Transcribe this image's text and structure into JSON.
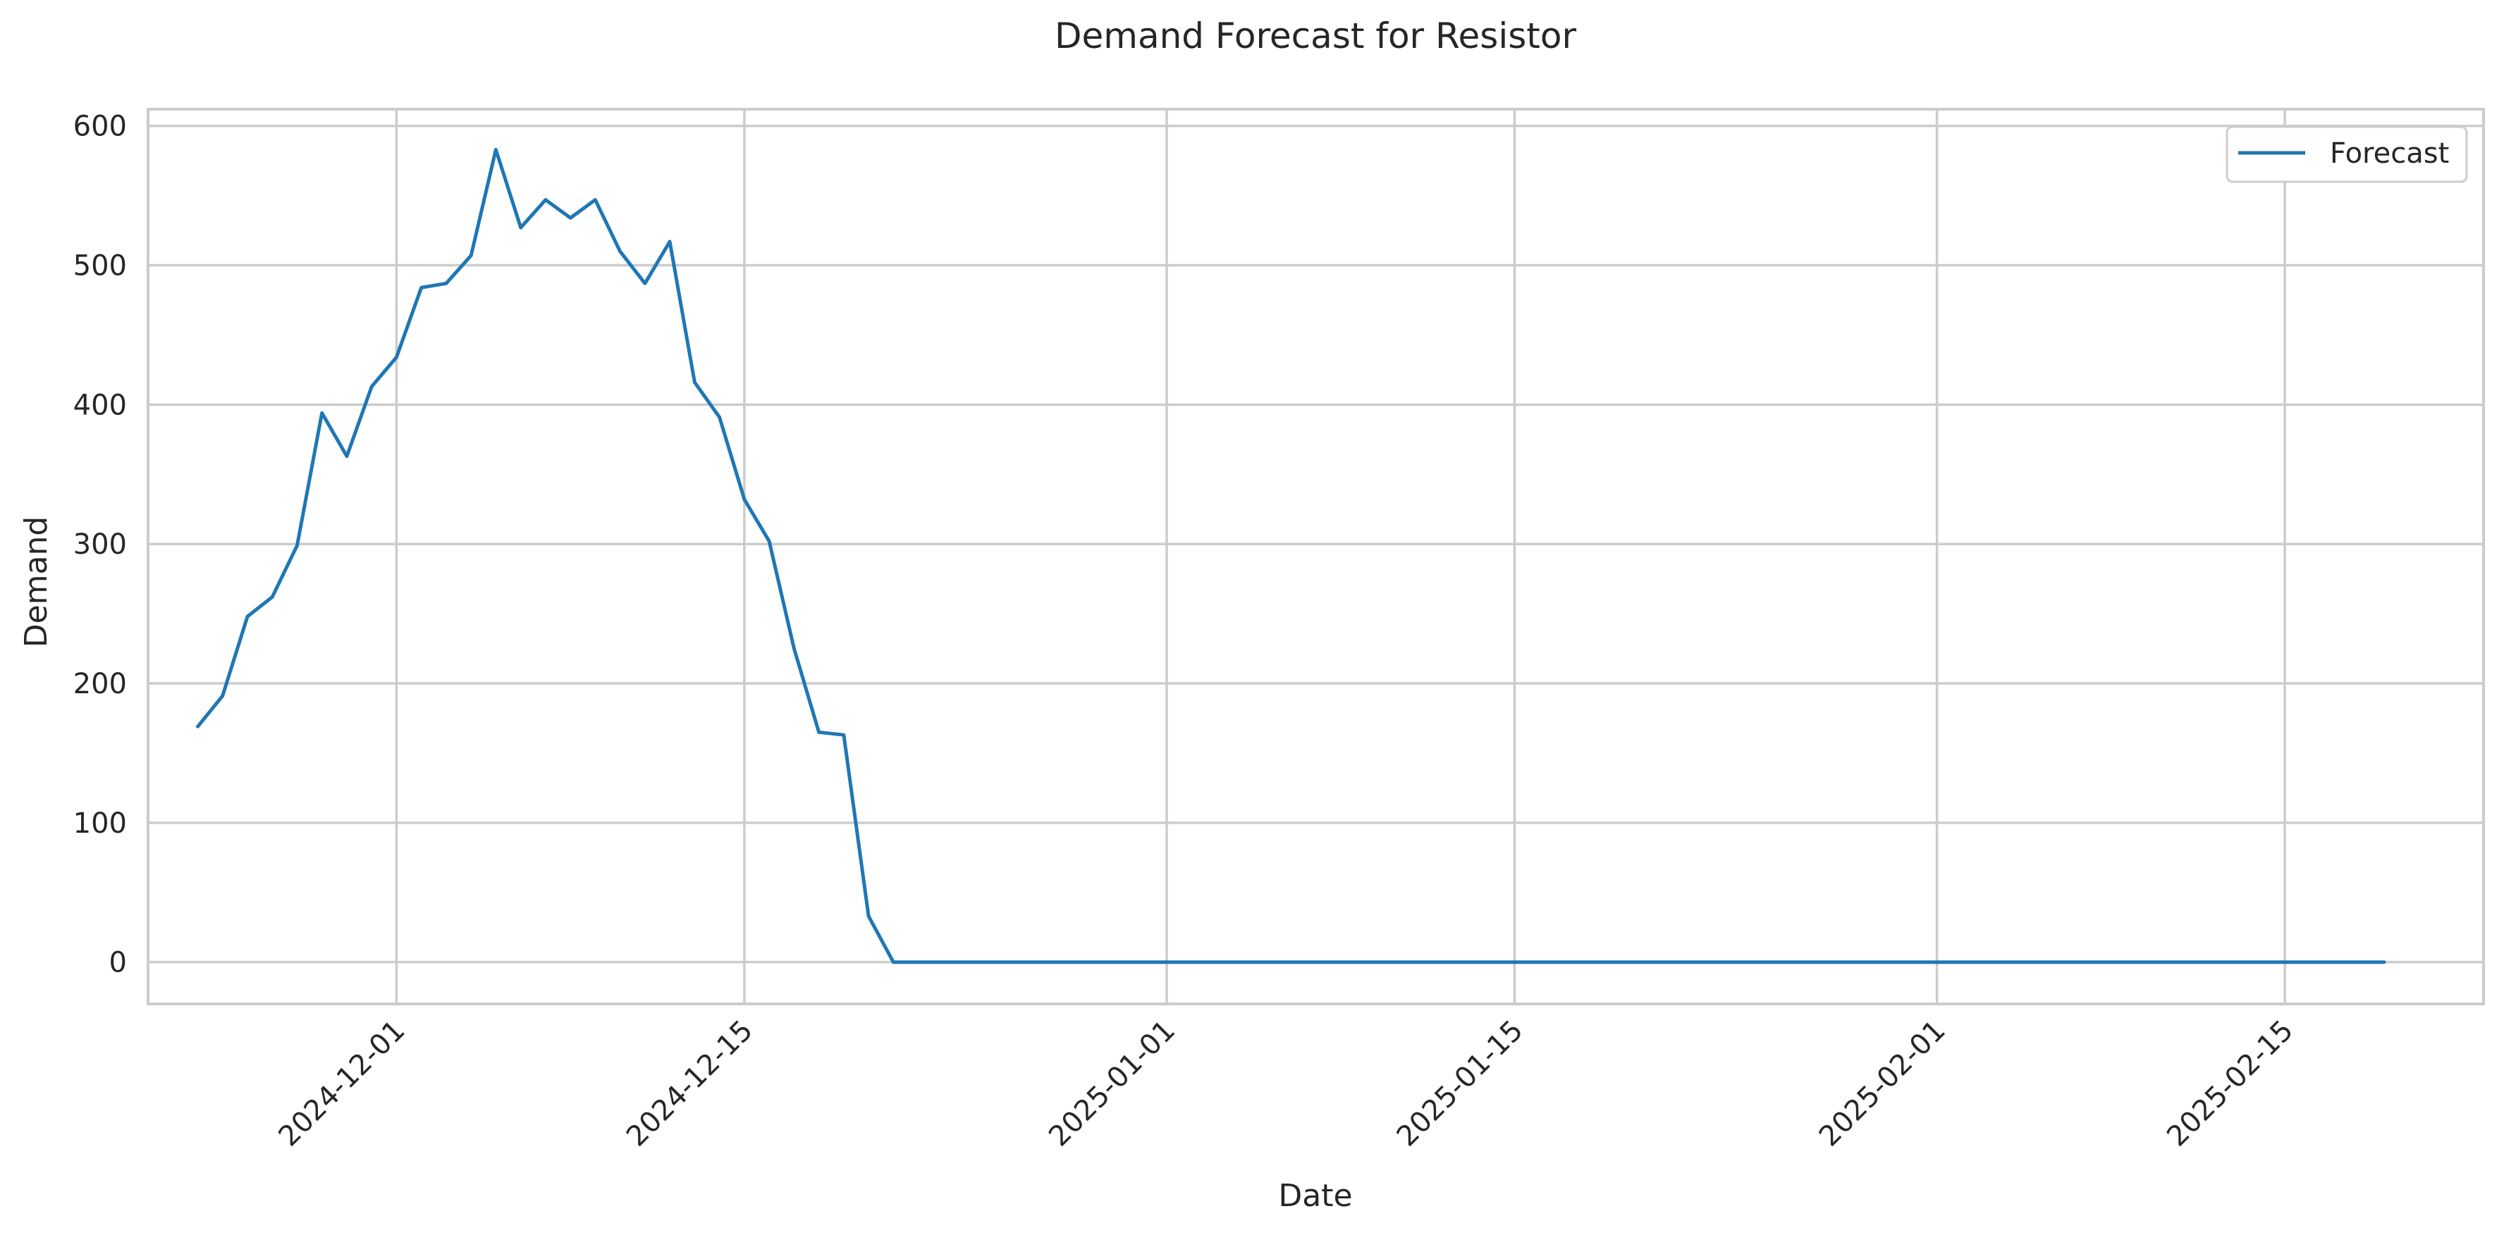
{
  "chart_data": {
    "type": "line",
    "title": "Demand Forecast for Resistor",
    "xlabel": "Date",
    "ylabel": "Demand",
    "x_axis_type": "date",
    "xlim": [
      "2024-11-21",
      "2025-02-23"
    ],
    "ylim": [
      -30,
      612
    ],
    "grid": true,
    "legend_position": "top-right",
    "colors": {
      "series": "#1f77b4",
      "grid": "#cccccc",
      "frame": "#cccccc",
      "text": "#262626",
      "background": "#ffffff"
    },
    "x_ticks": [
      "2024-12-01",
      "2024-12-15",
      "2025-01-01",
      "2025-01-15",
      "2025-02-01",
      "2025-02-15"
    ],
    "y_ticks": [
      0,
      100,
      200,
      300,
      400,
      500,
      600
    ],
    "series": [
      {
        "name": "Forecast",
        "color": "#1f77b4",
        "x": [
          "2024-11-23",
          "2024-11-24",
          "2024-11-25",
          "2024-11-26",
          "2024-11-27",
          "2024-11-28",
          "2024-11-29",
          "2024-11-30",
          "2024-12-01",
          "2024-12-02",
          "2024-12-03",
          "2024-12-04",
          "2024-12-05",
          "2024-12-06",
          "2024-12-07",
          "2024-12-08",
          "2024-12-09",
          "2024-12-10",
          "2024-12-11",
          "2024-12-12",
          "2024-12-13",
          "2024-12-14",
          "2024-12-15",
          "2024-12-16",
          "2024-12-17",
          "2024-12-18",
          "2024-12-19",
          "2024-12-20",
          "2024-12-21",
          "2024-12-22",
          "2024-12-23",
          "2024-12-24",
          "2024-12-25",
          "2024-12-26",
          "2024-12-27",
          "2024-12-28",
          "2024-12-29",
          "2024-12-30",
          "2024-12-31",
          "2025-01-01",
          "2025-01-02",
          "2025-01-03",
          "2025-01-04",
          "2025-01-05",
          "2025-01-06",
          "2025-01-07",
          "2025-01-08",
          "2025-01-09",
          "2025-01-10",
          "2025-01-11",
          "2025-01-12",
          "2025-01-13",
          "2025-01-14",
          "2025-01-15",
          "2025-01-16",
          "2025-01-17",
          "2025-01-18",
          "2025-01-19",
          "2025-01-20",
          "2025-01-21",
          "2025-01-22",
          "2025-01-23",
          "2025-01-24",
          "2025-01-25",
          "2025-01-26",
          "2025-01-27",
          "2025-01-28",
          "2025-01-29",
          "2025-01-30",
          "2025-01-31",
          "2025-02-01",
          "2025-02-02",
          "2025-02-03",
          "2025-02-04",
          "2025-02-05",
          "2025-02-06",
          "2025-02-07",
          "2025-02-08",
          "2025-02-09",
          "2025-02-10",
          "2025-02-11",
          "2025-02-12",
          "2025-02-13",
          "2025-02-14",
          "2025-02-15",
          "2025-02-16",
          "2025-02-17",
          "2025-02-18",
          "2025-02-19"
        ],
        "values": [
          169,
          191,
          248,
          262,
          299,
          394,
          363,
          413,
          434,
          484,
          487,
          507,
          583,
          527,
          547,
          534,
          547,
          510,
          487,
          517,
          416,
          391,
          332,
          302,
          225,
          165,
          163,
          33,
          0,
          0,
          0,
          0,
          0,
          0,
          0,
          0,
          0,
          0,
          0,
          0,
          0,
          0,
          0,
          0,
          0,
          0,
          0,
          0,
          0,
          0,
          0,
          0,
          0,
          0,
          0,
          0,
          0,
          0,
          0,
          0,
          0,
          0,
          0,
          0,
          0,
          0,
          0,
          0,
          0,
          0,
          0,
          0,
          0,
          0,
          0,
          0,
          0,
          0,
          0,
          0,
          0,
          0,
          0,
          0,
          0,
          0,
          0,
          0,
          0
        ]
      }
    ]
  }
}
